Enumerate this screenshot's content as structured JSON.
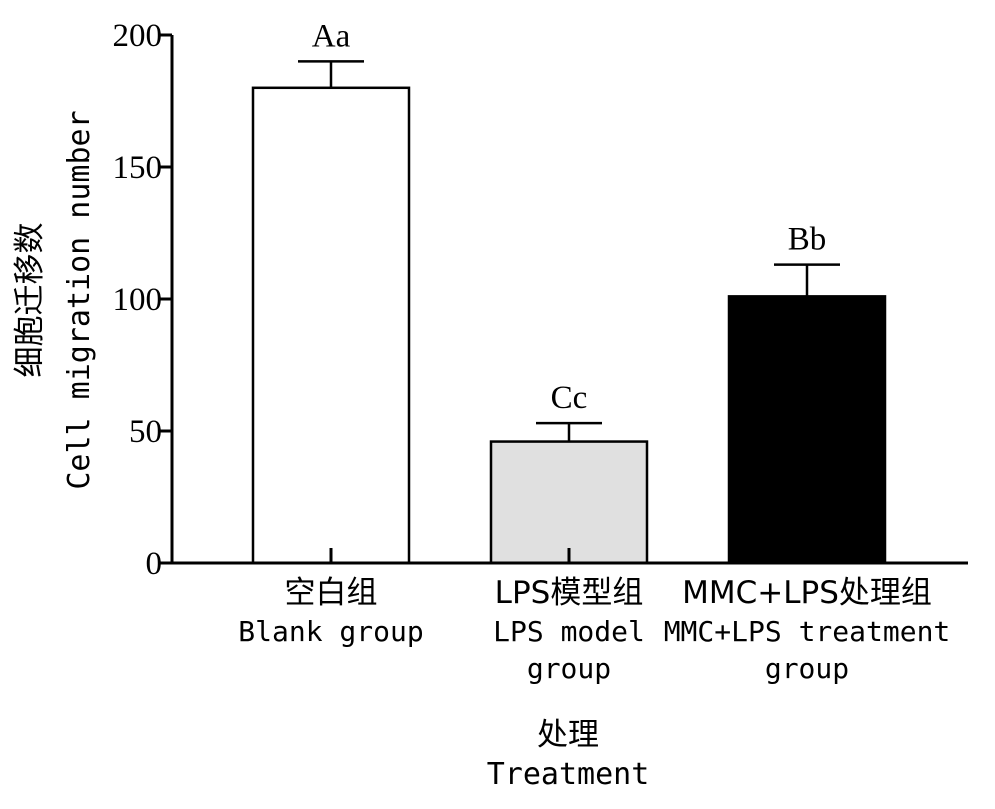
{
  "chart_data": {
    "type": "bar",
    "categories": [
      {
        "cn": "空白组",
        "en_lines": [
          "Blank group"
        ]
      },
      {
        "cn": "LPS模型组",
        "en_lines": [
          "LPS model",
          "group"
        ]
      },
      {
        "cn": "MMC+LPS处理组",
        "en_lines": [
          "MMC+LPS treatment",
          "group"
        ]
      }
    ],
    "values": [
      180,
      46,
      101
    ],
    "errors": [
      10,
      7,
      12
    ],
    "significance": [
      "Aa",
      "Cc",
      "Bb"
    ],
    "bar_colors": [
      "#ffffff",
      "#e0e0e0",
      "#000000"
    ],
    "ylim": [
      0,
      200
    ],
    "yticks": [
      0,
      50,
      100,
      150,
      200
    ],
    "ylabel_cn": "细胞迁移数",
    "ylabel_en": "Cell migration number",
    "xlabel_cn": "处理",
    "xlabel_en": "Treatment",
    "grid": false,
    "legend": "none"
  }
}
